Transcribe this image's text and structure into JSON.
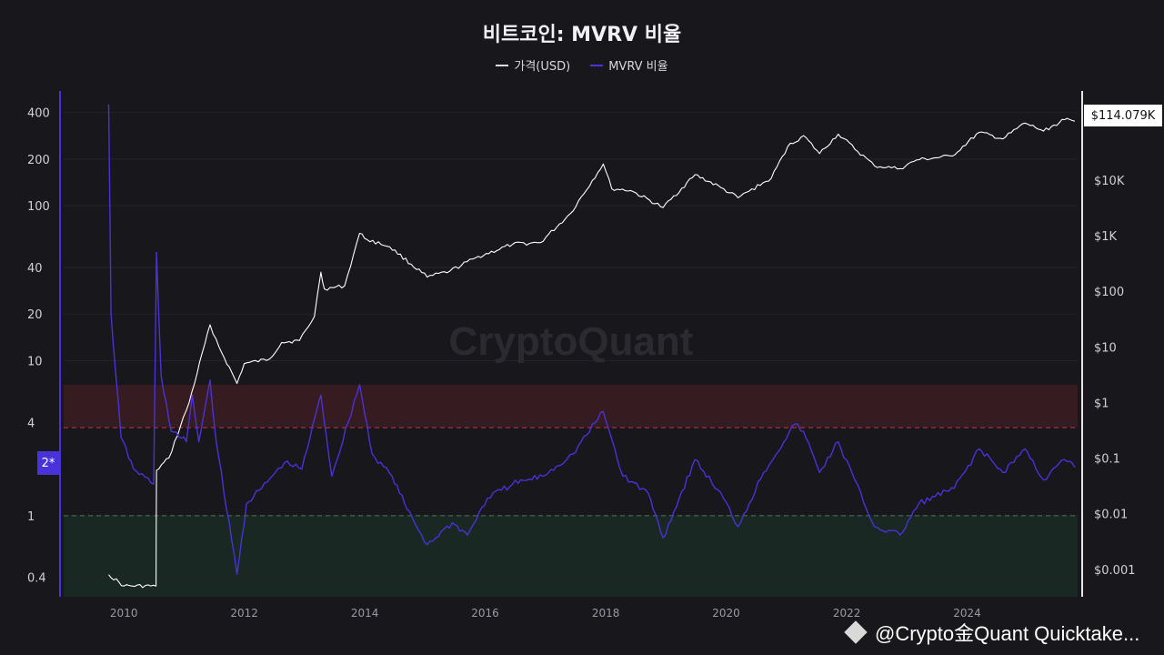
{
  "chart_data": {
    "type": "line",
    "title": "비트코인: MVRV 비율",
    "legend": {
      "placement": "top-center"
    },
    "series": [
      {
        "name": "가격(USD)",
        "color": "#ffffff",
        "axis": "right",
        "scale": "log",
        "points": [
          [
            "2009-10-01",
            0.0008
          ],
          [
            "2010-01-01",
            0.0005
          ],
          [
            "2010-07-15",
            0.0005
          ],
          [
            "2010-07-18",
            0.06
          ],
          [
            "2010-10-01",
            0.1
          ],
          [
            "2011-02-01",
            1
          ],
          [
            "2011-06-08",
            25
          ],
          [
            "2011-08-01",
            10
          ],
          [
            "2011-11-18",
            2.2
          ],
          [
            "2012-01-01",
            5
          ],
          [
            "2012-06-01",
            6
          ],
          [
            "2012-08-15",
            12
          ],
          [
            "2012-12-01",
            13
          ],
          [
            "2013-03-01",
            35
          ],
          [
            "2013-04-10",
            220
          ],
          [
            "2013-05-01",
            110
          ],
          [
            "2013-09-01",
            125
          ],
          [
            "2013-11-30",
            1100
          ],
          [
            "2014-01-15",
            850
          ],
          [
            "2014-06-01",
            630
          ],
          [
            "2015-01-14",
            180
          ],
          [
            "2015-06-01",
            230
          ],
          [
            "2015-11-04",
            400
          ],
          [
            "2016-06-15",
            700
          ],
          [
            "2016-12-01",
            750
          ],
          [
            "2017-06-01",
            2500
          ],
          [
            "2017-12-17",
            19500
          ],
          [
            "2018-02-06",
            7000
          ],
          [
            "2018-06-01",
            6500
          ],
          [
            "2018-12-15",
            3200
          ],
          [
            "2019-06-26",
            12500
          ],
          [
            "2019-12-01",
            7300
          ],
          [
            "2020-03-13",
            4800
          ],
          [
            "2020-10-01",
            10800
          ],
          [
            "2021-01-08",
            40000
          ],
          [
            "2021-04-14",
            63000
          ],
          [
            "2021-07-20",
            30000
          ],
          [
            "2021-11-10",
            67000
          ],
          [
            "2022-06-18",
            18000
          ],
          [
            "2022-11-21",
            16000
          ],
          [
            "2023-03-01",
            23000
          ],
          [
            "2023-10-01",
            27000
          ],
          [
            "2024-03-14",
            72000
          ],
          [
            "2024-08-05",
            55000
          ],
          [
            "2024-12-17",
            106000
          ],
          [
            "2025-04-08",
            76000
          ],
          [
            "2025-08-14",
            122000
          ],
          [
            "2025-10-15",
            114079
          ]
        ]
      },
      {
        "name": "MVRV 비율",
        "color": "#4a32d9",
        "axis": "left",
        "scale": "log",
        "points": [
          [
            "2009-10-01",
            450
          ],
          [
            "2009-10-15",
            20
          ],
          [
            "2009-12-15",
            3.2
          ],
          [
            "2010-03-01",
            2
          ],
          [
            "2010-07-01",
            1.6
          ],
          [
            "2010-07-18",
            50
          ],
          [
            "2010-08-15",
            8
          ],
          [
            "2010-10-15",
            3.5
          ],
          [
            "2011-01-15",
            3
          ],
          [
            "2011-02-20",
            6
          ],
          [
            "2011-04-01",
            3
          ],
          [
            "2011-06-08",
            7.5
          ],
          [
            "2011-07-15",
            3
          ],
          [
            "2011-11-18",
            0.42
          ],
          [
            "2012-01-15",
            1.2
          ],
          [
            "2012-04-15",
            1.5
          ],
          [
            "2012-09-01",
            2.2
          ],
          [
            "2012-12-15",
            2
          ],
          [
            "2013-04-10",
            6
          ],
          [
            "2013-06-15",
            1.8
          ],
          [
            "2013-11-30",
            7
          ],
          [
            "2014-02-15",
            2.5
          ],
          [
            "2014-06-15",
            1.8
          ],
          [
            "2014-09-15",
            1.1
          ],
          [
            "2015-01-14",
            0.65
          ],
          [
            "2015-06-15",
            0.9
          ],
          [
            "2015-09-15",
            0.75
          ],
          [
            "2016-01-15",
            1.3
          ],
          [
            "2016-06-15",
            1.6
          ],
          [
            "2016-12-15",
            1.8
          ],
          [
            "2017-06-15",
            2.5
          ],
          [
            "2017-12-17",
            4.7
          ],
          [
            "2018-04-15",
            1.8
          ],
          [
            "2018-09-15",
            1.4
          ],
          [
            "2018-12-15",
            0.72
          ],
          [
            "2019-06-26",
            2.3
          ],
          [
            "2019-12-15",
            1.3
          ],
          [
            "2020-03-13",
            0.85
          ],
          [
            "2020-08-15",
            1.9
          ],
          [
            "2021-02-20",
            3.9
          ],
          [
            "2021-04-14",
            3.5
          ],
          [
            "2021-07-20",
            1.9
          ],
          [
            "2021-11-10",
            3
          ],
          [
            "2022-06-18",
            0.85
          ],
          [
            "2022-11-21",
            0.75
          ],
          [
            "2023-03-15",
            1.2
          ],
          [
            "2023-10-15",
            1.5
          ],
          [
            "2024-03-14",
            2.7
          ],
          [
            "2024-08-05",
            1.9
          ],
          [
            "2024-12-17",
            2.7
          ],
          [
            "2025-04-08",
            1.7
          ],
          [
            "2025-08-14",
            2.3
          ],
          [
            "2025-10-15",
            2.05
          ]
        ]
      }
    ],
    "y_left": {
      "scale": "log",
      "range": [
        0.3,
        550
      ],
      "ticks": [
        400,
        200,
        100,
        40,
        20,
        10,
        4,
        1,
        0.4
      ],
      "tick_labels": [
        "400",
        "200",
        "100",
        "40",
        "20",
        "10",
        "4",
        "1",
        "0.4"
      ]
    },
    "y_right": {
      "scale": "log",
      "range": [
        0.00032,
        400000
      ],
      "ticks": [
        10000,
        1000,
        100,
        10,
        1,
        0.1,
        0.01,
        0.001
      ],
      "tick_labels": [
        "$10K",
        "$1K",
        "$100",
        "$10",
        "$1",
        "$0.1",
        "$0.01",
        "$0.001"
      ]
    },
    "x": {
      "type": "date",
      "range": [
        "2009-01-01",
        "2025-11-01"
      ],
      "ticks": [
        2010,
        2012,
        2014,
        2016,
        2018,
        2020,
        2022,
        2024
      ],
      "tick_labels": [
        "2010",
        "2012",
        "2014",
        "2016",
        "2018",
        "2020",
        "2022",
        "2024"
      ]
    },
    "bands": [
      {
        "from": 3.7,
        "to": 7,
        "color": "#3a1c22"
      },
      {
        "from": 0.3,
        "to": 1,
        "color": "#1a2a24"
      }
    ],
    "reference_lines": [
      {
        "value": 3.7,
        "color": "#c0394a"
      },
      {
        "value": 1,
        "color": "#4b7a4e"
      }
    ],
    "markers": {
      "left_axis": "2*",
      "last_price": "$114.079K"
    },
    "grid": true,
    "watermark": "CryptoQuant"
  },
  "footer": {
    "handle": "@Crypto金Quant Quicktake..."
  }
}
